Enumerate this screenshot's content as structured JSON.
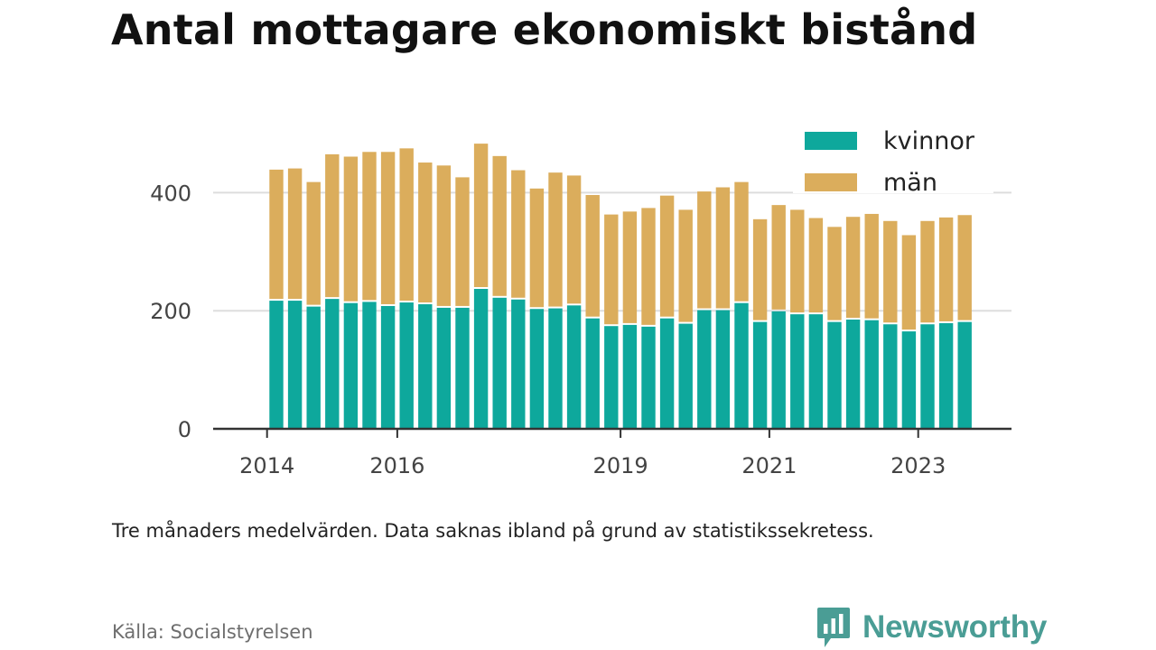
{
  "title": "Antal mottagare ekonomiskt bistånd",
  "note": "Tre månaders medelvärden. Data saknas ibland på grund av statistikssekretess.",
  "source": "Källa: Socialstyrelsen",
  "brand": {
    "name": "Newsworthy",
    "icon": "chat-bar-chart-icon",
    "color": "#4a9d95"
  },
  "colors": {
    "kvinnor": "#0ea89c",
    "man": "#dbad5c",
    "grid": "#dddddd",
    "axis": "#333333",
    "tick_text": "#444444"
  },
  "chart_data": {
    "type": "bar",
    "stacked": true,
    "title": "Antal mottagare ekonomiskt bistånd",
    "xlabel": "",
    "ylabel": "",
    "ylim": [
      0,
      500
    ],
    "y_ticks": [
      0,
      200,
      400
    ],
    "x_tick_labels": [
      "2014",
      "2016",
      "2019",
      "2021",
      "2023"
    ],
    "x_tick_bar_index": [
      -0.5,
      6.5,
      18.5,
      26.5,
      34.5
    ],
    "grid": true,
    "legend_position": "top-right",
    "series": [
      {
        "name": "kvinnor",
        "values": [
          217,
          217,
          207,
          220,
          213,
          215,
          208,
          214,
          211,
          205,
          205,
          237,
          222,
          219,
          203,
          204,
          209,
          187,
          174,
          176,
          173,
          187,
          178,
          201,
          201,
          213,
          181,
          199,
          194,
          194,
          181,
          185,
          184,
          177,
          165,
          177,
          179,
          181
        ]
      },
      {
        "name": "män",
        "values": [
          222,
          224,
          211,
          245,
          248,
          254,
          261,
          261,
          240,
          241,
          221,
          246,
          240,
          219,
          204,
          230,
          220,
          209,
          189,
          192,
          201,
          208,
          193,
          201,
          208,
          205,
          174,
          180,
          177,
          163,
          161,
          174,
          180,
          175,
          163,
          175,
          179,
          181
        ]
      }
    ]
  }
}
